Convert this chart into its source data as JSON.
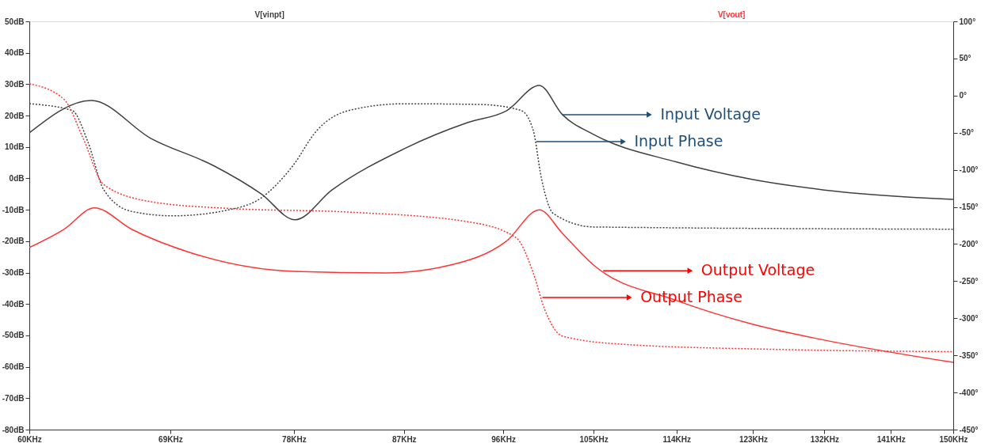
{
  "chart_data": {
    "type": "line",
    "log": "x",
    "grid": false,
    "legend": "top",
    "xlim": [
      60,
      150
    ],
    "xticks": [
      {
        "value": 60,
        "label": "60KHz"
      },
      {
        "value": 69,
        "label": "69KHz"
      },
      {
        "value": 78,
        "label": "78KHz"
      },
      {
        "value": 87,
        "label": "87KHz"
      },
      {
        "value": 96,
        "label": "96KHz"
      },
      {
        "value": 105,
        "label": "105KHz"
      },
      {
        "value": 114,
        "label": "114KHz"
      },
      {
        "value": 123,
        "label": "123KHz"
      },
      {
        "value": 132,
        "label": "132KHz"
      },
      {
        "value": 141,
        "label": "141KHz"
      },
      {
        "value": 150,
        "label": "150KHz"
      }
    ],
    "ylim": [
      -80,
      50
    ],
    "yticks": [
      {
        "value": 50,
        "label": "50dB"
      },
      {
        "value": 40,
        "label": "40dB"
      },
      {
        "value": 30,
        "label": "30dB"
      },
      {
        "value": 20,
        "label": "20dB"
      },
      {
        "value": 10,
        "label": "10dB"
      },
      {
        "value": 0,
        "label": "0dB"
      },
      {
        "value": -10,
        "label": "-10dB"
      },
      {
        "value": -20,
        "label": "-20dB"
      },
      {
        "value": -30,
        "label": "-30dB"
      },
      {
        "value": -40,
        "label": "-40dB"
      },
      {
        "value": -50,
        "label": "-50dB"
      },
      {
        "value": -60,
        "label": "-60dB"
      },
      {
        "value": -70,
        "label": "-70dB"
      },
      {
        "value": -80,
        "label": "-80dB"
      }
    ],
    "y2lim": [
      -450,
      100
    ],
    "y2ticks": [
      {
        "value": 100,
        "label": "100°"
      },
      {
        "value": 50,
        "label": "50°"
      },
      {
        "value": 0,
        "label": "0°"
      },
      {
        "value": -50,
        "label": "-50°"
      },
      {
        "value": -100,
        "label": "-100°"
      },
      {
        "value": -150,
        "label": "-150°"
      },
      {
        "value": -200,
        "label": "-200°"
      },
      {
        "value": -250,
        "label": "-250°"
      },
      {
        "value": -300,
        "label": "-300°"
      },
      {
        "value": -350,
        "label": "-350°"
      },
      {
        "value": -400,
        "label": "-400°"
      },
      {
        "value": -450,
        "label": "-450°"
      }
    ],
    "series": [
      {
        "name": "V[vinpt]",
        "color": "#404040",
        "line_style": "solid",
        "x": [
          60,
          63.8,
          67.7,
          72.1,
          75.5,
          78.1,
          81.0,
          87.0,
          92.7,
          96.3,
          99.5,
          101.8,
          105,
          114,
          123,
          132,
          150
        ],
        "values": [
          14.5,
          24.8,
          12.7,
          3.9,
          -4.9,
          -13.2,
          -3.7,
          9.4,
          17.8,
          21.5,
          29.6,
          20.3,
          14.0,
          5.2,
          -0.4,
          -3.7,
          -6.7
        ]
      },
      {
        "color": "#404040",
        "line_style": "dotted",
        "axis": "y2",
        "x": [
          60,
          62.6,
          63.6,
          64.6,
          66.4,
          69.2,
          73.1,
          75.5,
          77.9,
          79.8,
          82.4,
          87.0,
          93.9,
          97.7,
          98.9,
          99.7,
          100.9,
          105,
          150
        ],
        "values": [
          -11,
          -20,
          -63,
          -127,
          -156,
          -162,
          -154,
          -138,
          -95,
          -47,
          -20,
          -11,
          -12,
          -20,
          -47,
          -111,
          -159,
          -177,
          -180
        ]
      },
      {
        "name": "V[vout]",
        "color": "#ff3333",
        "line_style": "solid",
        "x": [
          60,
          62.1,
          64.0,
          66.4,
          70.5,
          78,
          85.5,
          91.1,
          96.3,
          99.5,
          101.8,
          105,
          114,
          123,
          132,
          150
        ],
        "values": [
          -22,
          -16.2,
          -9.4,
          -16.2,
          -23.8,
          -29.6,
          -30.1,
          -27.6,
          -20,
          -10,
          -17.5,
          -27.6,
          -38.9,
          -46.5,
          -51.5,
          -58.6
        ]
      },
      {
        "color": "#ff3333",
        "line_style": "dotted",
        "axis": "y2",
        "x": [
          60,
          62.1,
          63.3,
          64.6,
          67.7,
          73.1,
          82.4,
          92.7,
          97.2,
          98.9,
          100.0,
          101.8,
          108,
          126,
          150
        ],
        "values": [
          16,
          -5,
          -58,
          -120,
          -143,
          -152,
          -157,
          -170,
          -191,
          -239,
          -287,
          -324,
          -335,
          -342,
          -345
        ]
      }
    ],
    "annotations": [
      {
        "text": "Input Voltage",
        "x": 101.8,
        "y": 20.3
      },
      {
        "text": "Input Phase",
        "x": 99.2,
        "y": 11.7
      },
      {
        "text": "Output Voltage",
        "x": 106,
        "y": -29.4
      },
      {
        "text": "Output Phase",
        "x": 99.8,
        "y": -37.9
      }
    ]
  }
}
